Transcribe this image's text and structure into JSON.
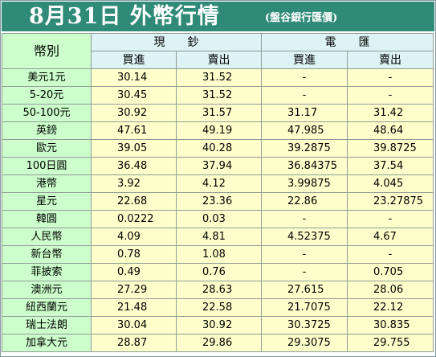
{
  "header": {
    "title": "8月31日 外幣行情",
    "source": "(盤谷銀行匯價)"
  },
  "table": {
    "currency_col": "幣別",
    "cash_label": "現　　鈔",
    "telegraphic_label": "電　　匯",
    "buy_label": "買進",
    "sell_label": "賣出",
    "rows": [
      {
        "currency": "美元1元",
        "cash_buy": "30.14",
        "cash_sell": "31.52",
        "tt_buy": "-",
        "tt_sell": "-"
      },
      {
        "currency": "5-20元",
        "cash_buy": "30.45",
        "cash_sell": "31.52",
        "tt_buy": "-",
        "tt_sell": "-"
      },
      {
        "currency": "50-100元",
        "cash_buy": "30.92",
        "cash_sell": "31.57",
        "tt_buy": "31.17",
        "tt_sell": "31.42"
      },
      {
        "currency": "英鎊",
        "cash_buy": "47.61",
        "cash_sell": "49.19",
        "tt_buy": "47.985",
        "tt_sell": "48.64"
      },
      {
        "currency": "歐元",
        "cash_buy": "39.05",
        "cash_sell": "40.28",
        "tt_buy": "39.2875",
        "tt_sell": "39.8725"
      },
      {
        "currency": "100日圓",
        "cash_buy": "36.48",
        "cash_sell": "37.94",
        "tt_buy": "36.84375",
        "tt_sell": "37.54"
      },
      {
        "currency": "港幣",
        "cash_buy": "3.92",
        "cash_sell": "4.12",
        "tt_buy": "3.99875",
        "tt_sell": "4.045"
      },
      {
        "currency": "星元",
        "cash_buy": "22.68",
        "cash_sell": "23.36",
        "tt_buy": "22.86",
        "tt_sell": "23.27875"
      },
      {
        "currency": "韓圓",
        "cash_buy": "0.0222",
        "cash_sell": "0.03",
        "tt_buy": "-",
        "tt_sell": "-"
      },
      {
        "currency": "人民幣",
        "cash_buy": "4.09",
        "cash_sell": "4.81",
        "tt_buy": "4.52375",
        "tt_sell": "4.67"
      },
      {
        "currency": "新台幣",
        "cash_buy": "0.78",
        "cash_sell": "1.08",
        "tt_buy": "-",
        "tt_sell": "-"
      },
      {
        "currency": "菲披索",
        "cash_buy": "0.49",
        "cash_sell": "0.76",
        "tt_buy": "-",
        "tt_sell": "0.705"
      },
      {
        "currency": "澳洲元",
        "cash_buy": "27.29",
        "cash_sell": "28.63",
        "tt_buy": "27.615",
        "tt_sell": "28.06"
      },
      {
        "currency": "紐西蘭元",
        "cash_buy": "21.48",
        "cash_sell": "22.58",
        "tt_buy": "21.7075",
        "tt_sell": "22.12"
      },
      {
        "currency": "瑞士法朗",
        "cash_buy": "30.04",
        "cash_sell": "30.92",
        "tt_buy": "30.3725",
        "tt_sell": "30.835"
      },
      {
        "currency": "加拿大元",
        "cash_buy": "28.87",
        "cash_sell": "29.86",
        "tt_buy": "29.3075",
        "tt_sell": "29.755"
      }
    ]
  },
  "colors": {
    "title_bg": "#2f8a78",
    "currency_bg": "#ccffcc",
    "header_bg": "#ddf3f5",
    "value_bg": "#ffffcc"
  }
}
